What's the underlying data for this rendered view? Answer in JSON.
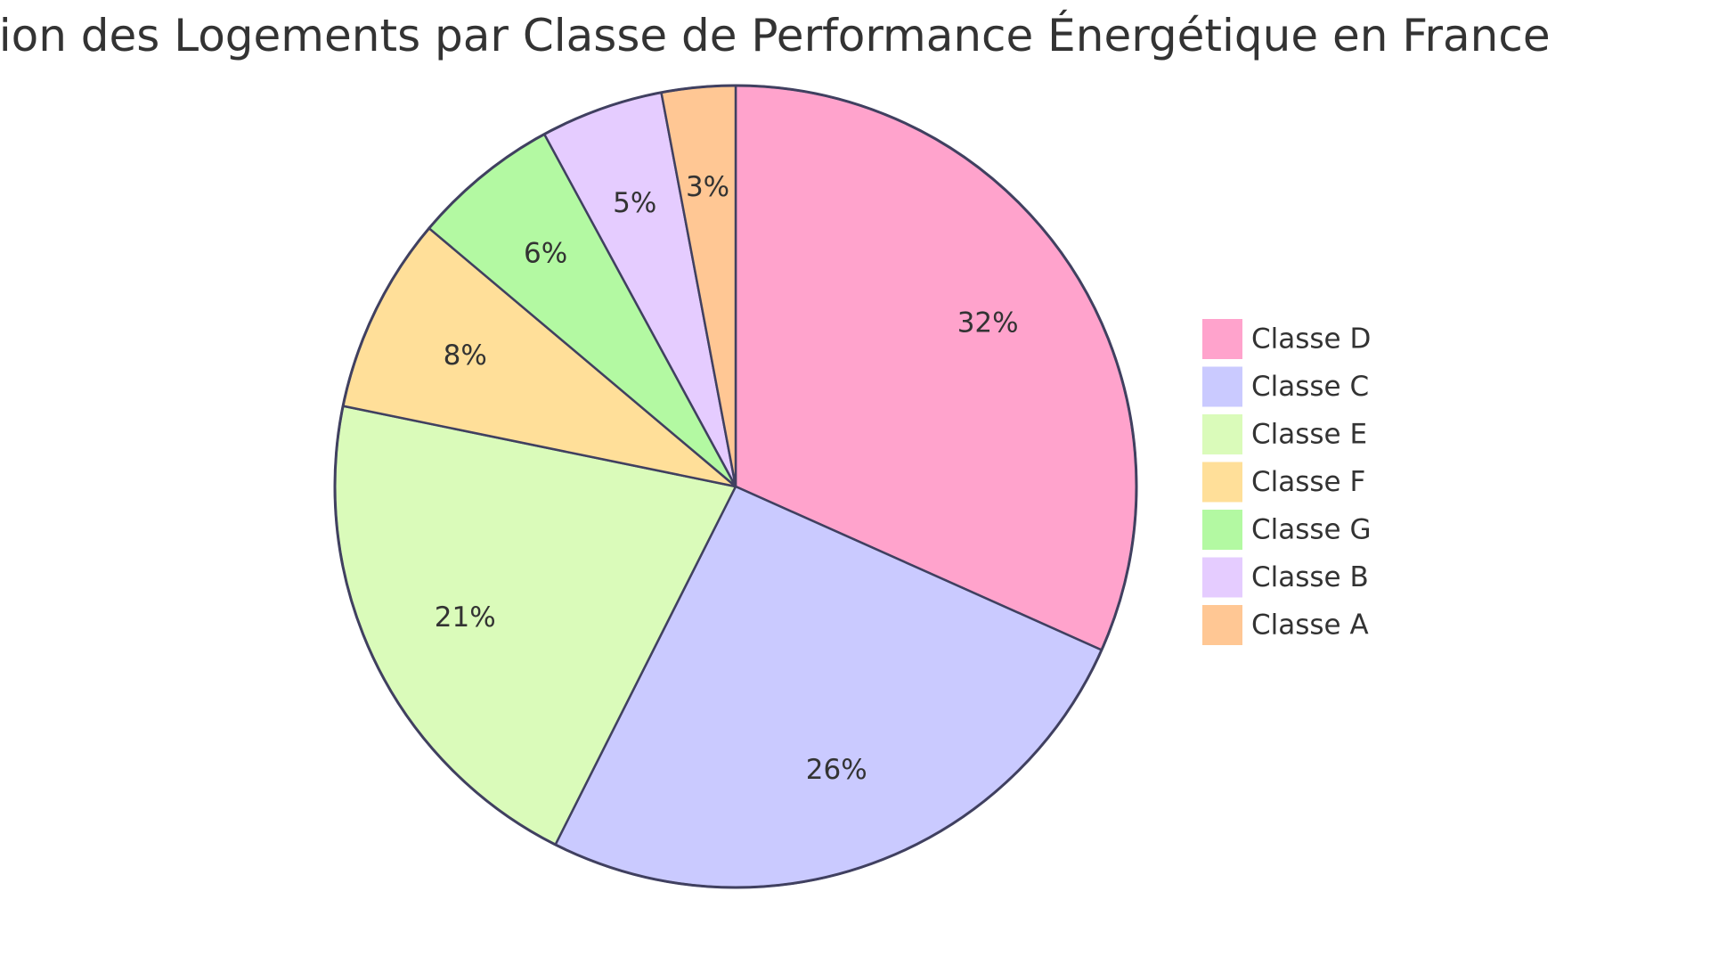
{
  "chart_data": {
    "type": "pie",
    "title": "Répartition des Logements par Classe de Performance Énergétique en France",
    "slices": [
      {
        "label": "Classe D",
        "value": 32,
        "value_label": "32%",
        "color": "#ffa3cc"
      },
      {
        "label": "Classe C",
        "value": 26,
        "value_label": "26%",
        "color": "#cacaff"
      },
      {
        "label": "Classe E",
        "value": 21,
        "value_label": "21%",
        "color": "#dafbba"
      },
      {
        "label": "Classe F",
        "value": 8,
        "value_label": "8%",
        "color": "#ffdf99"
      },
      {
        "label": "Classe G",
        "value": 6,
        "value_label": "6%",
        "color": "#b3f9a2"
      },
      {
        "label": "Classe B",
        "value": 5,
        "value_label": "5%",
        "color": "#e5ccff"
      },
      {
        "label": "Classe A",
        "value": 3,
        "value_label": "3%",
        "color": "#ffc794"
      }
    ],
    "legend_position": "right",
    "stroke_color": "#404060"
  }
}
